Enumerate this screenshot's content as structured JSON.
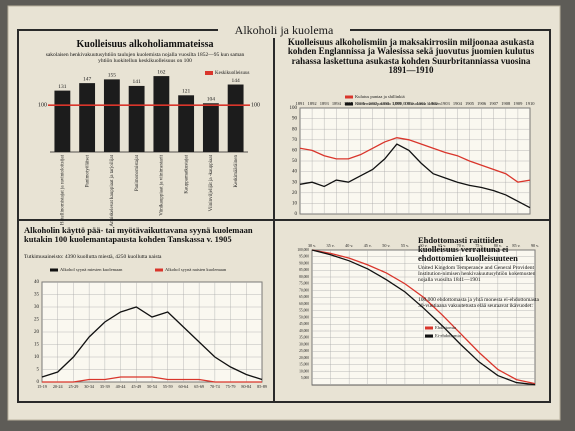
{
  "title": "Alkoholi ja kuolema",
  "chart_data": [
    {
      "type": "bar",
      "title": "Kuolleisuus alkoholiammateissa",
      "subtitle": "sakolaisen henkivakuutusyhtiön taulujen kuolemista nojalla vuosilta 1852—95 kun saman yhtiön luokitellun keskikuolleisuus on 100",
      "categories": [
        "Hotellinomistajat ja ravintoloitsijat",
        "Panimotyöläiset",
        "Anniskelevat kauppiaat ja tarjoilijat",
        "Panimonomistajat",
        "Viinikauppiaat ja viinimestarit",
        "Kauppamatkustajat",
        "Viininviljelijät ja -kauppiaat",
        "Keskimääräinen"
      ],
      "values": [
        131,
        147,
        155,
        141,
        162,
        121,
        104,
        144
      ],
      "color": "#1c1c1c",
      "reference_line": {
        "name": "Keskikuolleisuus",
        "value": 100,
        "color": "#d9352b"
      },
      "ylim": [
        0,
        175
      ],
      "yticks": [
        100
      ],
      "grid": false
    },
    {
      "type": "line",
      "title": "Kuolleisuus alkoholismiin ja maksakirrosiin miljoonaa asukasta kohden Englannissa ja Walesissa sekä juovutus juomien kulutus rahassa laskettuna asukasta kohden Suurbritanniassa vuosina 1891—1910",
      "categories": [
        "1891",
        "1892",
        "1893",
        "1894",
        "1895",
        "1896",
        "1897",
        "1898",
        "1899",
        "1900",
        "1901",
        "1902",
        "1903",
        "1904",
        "1905",
        "1906",
        "1907",
        "1908",
        "1909",
        "1910"
      ],
      "series": [
        {
          "name": "Kulutus puntaa ja shillinkiä",
          "color": "#d9352b",
          "values": [
            62,
            60,
            55,
            52,
            52,
            56,
            62,
            68,
            72,
            70,
            66,
            62,
            58,
            55,
            50,
            46,
            42,
            38,
            30,
            32
          ]
        },
        {
          "name": "Kuolemantapauksia 1,000,000 asukasta kohden",
          "color": "#111111",
          "values": [
            28,
            30,
            26,
            32,
            30,
            36,
            42,
            52,
            66,
            60,
            48,
            38,
            34,
            30,
            27,
            25,
            22,
            18,
            12,
            6
          ]
        }
      ],
      "ylim": [
        0,
        100
      ],
      "yticks": [
        0,
        10,
        20,
        30,
        40,
        50,
        60,
        70,
        80,
        90,
        100
      ],
      "grid": true,
      "xaxis_position": "top"
    },
    {
      "type": "line",
      "title": "Alkoholin käyttö pää- tai myötävaikuttavana syynä kuolemaan kutakin 100 kuolemantapausta kohden Tanskassa v. 1905",
      "subtitle": "Tutkimusaineisto: 4390 kuollutta miestä, 4250 kuollutta naista",
      "categories": [
        "15-19",
        "20-24",
        "25-29",
        "30-34",
        "35-39",
        "40-44",
        "45-49",
        "50-54",
        "55-59",
        "60-64",
        "65-69",
        "70-74",
        "75-79",
        "80-84",
        "85-89"
      ],
      "series": [
        {
          "name": "Alkohol syynä miesten kuolemaan",
          "color": "#111111",
          "values": [
            2,
            4,
            10,
            18,
            24,
            28,
            30,
            26,
            28,
            22,
            16,
            10,
            6,
            3,
            1
          ]
        },
        {
          "name": "Alkohol syynä naisten kuolemaan",
          "color": "#d9352b",
          "values": [
            0,
            0,
            0,
            1,
            1,
            2,
            2,
            2,
            1,
            1,
            1,
            0,
            0,
            0,
            0
          ]
        }
      ],
      "ylim": [
        0,
        40
      ],
      "yticks": [
        0,
        5,
        10,
        15,
        20,
        25,
        30,
        35,
        40
      ],
      "grid": true,
      "xaxis_position": "bottom"
    },
    {
      "type": "line",
      "title": "Ehdottomasti raittiiden kuolleisuus verrattuna ei ehdottomien kuolleisuuteen",
      "subtitle": "United Kingdom Temperance and General Provident Institution-nimisen henkivakuutusyhtiön kokemusten nojalla vuosilta 1841—1901",
      "note": "100,000 ehdottomasta ja yhtä monesta ei-ehdottomasta 30-vuotiaana vakuutetusta elää seuraavat ikävuodet:",
      "categories": [
        "30 v.",
        "35 v.",
        "40 v.",
        "45 v.",
        "50 v.",
        "55 v.",
        "60 v.",
        "65 v.",
        "70 v.",
        "75 v.",
        "80 v.",
        "85 v.",
        "90 v."
      ],
      "series": [
        {
          "name": "Ehdottomia",
          "color": "#d9352b",
          "values": [
            100000,
            97500,
            94000,
            89000,
            83000,
            75000,
            65000,
            52000,
            38000,
            24000,
            11500,
            4000,
            1000
          ]
        },
        {
          "name": "Ei-ehdottomia",
          "color": "#111111",
          "values": [
            100000,
            96500,
            92000,
            86000,
            78000,
            69000,
            57000,
            44000,
            30000,
            17000,
            7000,
            1800,
            300
          ]
        }
      ],
      "ylim": [
        0,
        100000
      ],
      "yticks": [
        {
          "value": 5000,
          "label": "5,000"
        },
        {
          "value": 10000,
          "label": "10,000"
        },
        {
          "value": 15000,
          "label": "15,000"
        },
        {
          "value": 20000,
          "label": "20,000"
        },
        {
          "value": 25000,
          "label": "25,000"
        },
        {
          "value": 30000,
          "label": "30,000"
        },
        {
          "value": 35000,
          "label": "35,000"
        },
        {
          "value": 40000,
          "label": "40,000"
        },
        {
          "value": 45000,
          "label": "45,000"
        },
        {
          "value": 50000,
          "label": "50,000"
        },
        {
          "value": 55000,
          "label": "55,000"
        },
        {
          "value": 60000,
          "label": "60,000"
        },
        {
          "value": 65000,
          "label": "65,000"
        },
        {
          "value": 70000,
          "label": "70,000"
        },
        {
          "value": 75000,
          "label": "75,000"
        },
        {
          "value": 80000,
          "label": "80,000"
        },
        {
          "value": 85000,
          "label": "85,000"
        },
        {
          "value": 90000,
          "label": "90,000"
        },
        {
          "value": 95000,
          "label": "95,000"
        },
        {
          "value": 100000,
          "label": "100,000"
        }
      ],
      "grid": true,
      "xaxis_position": "top"
    }
  ]
}
